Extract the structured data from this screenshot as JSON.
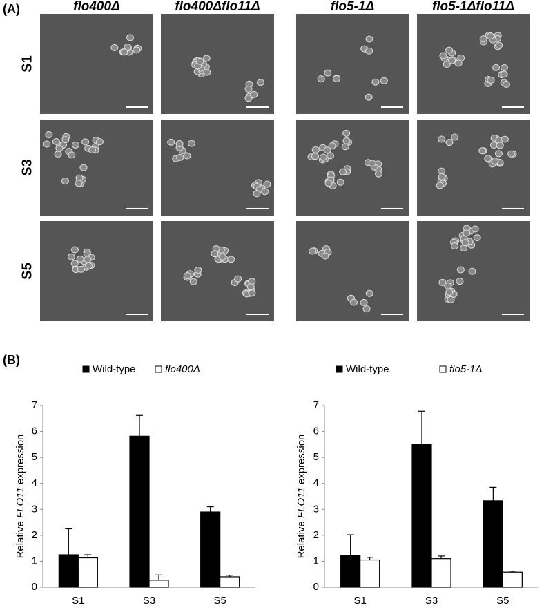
{
  "panel_a": {
    "label": "(A)",
    "column_headers": [
      "flo400Δ",
      "flo400Δflo11Δ",
      "flo5-1Δ",
      "flo5-1Δflo11Δ"
    ],
    "row_labels": [
      "S1",
      "S3",
      "S5"
    ]
  },
  "panel_b_label": "(B)",
  "chart_data": [
    {
      "type": "bar",
      "y_label_parts": [
        "Relative ",
        "FLO11",
        " expression"
      ],
      "categories": [
        "S1",
        "S3",
        "S5"
      ],
      "series": [
        {
          "name": "Wild-type",
          "color": "#000000",
          "values": [
            1.25,
            5.82,
            2.9
          ],
          "error": [
            1.0,
            0.8,
            0.2
          ]
        },
        {
          "name": "flo400Δ",
          "color": "#ffffff",
          "values": [
            1.13,
            0.27,
            0.4
          ],
          "error": [
            0.12,
            0.2,
            0.06
          ]
        }
      ],
      "ylim": [
        0,
        7
      ],
      "yticks": [
        0,
        1,
        2,
        3,
        4,
        5,
        6,
        7
      ]
    },
    {
      "type": "bar",
      "y_label_parts": [
        "Relative ",
        "FLO11",
        " expression"
      ],
      "categories": [
        "S1",
        "S3",
        "S5"
      ],
      "series": [
        {
          "name": "Wild-type",
          "color": "#000000",
          "values": [
            1.22,
            5.5,
            3.33
          ],
          "error": [
            0.8,
            1.28,
            0.52
          ]
        },
        {
          "name": "flo5-1Δ",
          "color": "#ffffff",
          "values": [
            1.05,
            1.1,
            0.58
          ],
          "error": [
            0.1,
            0.1,
            0.04
          ]
        }
      ],
      "ylim": [
        0,
        7
      ],
      "yticks": [
        0,
        1,
        2,
        3,
        4,
        5,
        6,
        7
      ]
    }
  ]
}
